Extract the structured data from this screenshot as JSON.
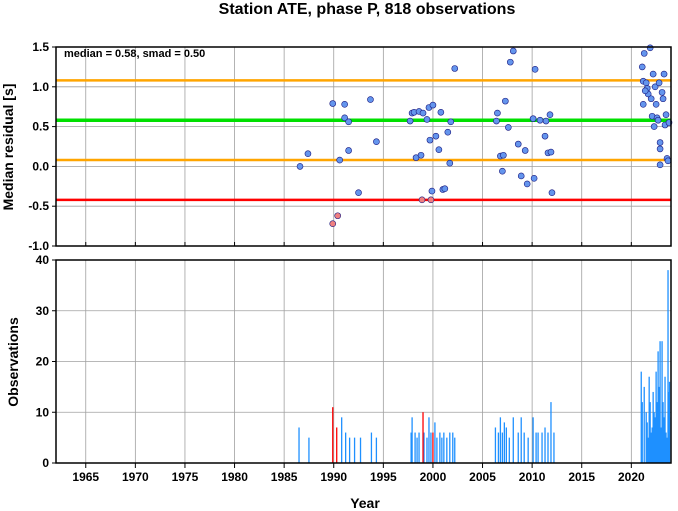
{
  "chart_data": [
    {
      "type": "scatter",
      "title": "Station ATE, phase P, 818 observations",
      "stats_text": "median = 0.58, smad = 0.50",
      "xlabel": "",
      "ylabel": "Median residual [s]",
      "xlim": [
        1962,
        2024
      ],
      "ylim": [
        -1.0,
        1.5
      ],
      "x_ticks": [
        1965,
        1970,
        1975,
        1980,
        1985,
        1990,
        1995,
        2000,
        2005,
        2010,
        2015,
        2020
      ],
      "y_ticks": [
        -1.0,
        -0.5,
        0.0,
        0.5,
        1.0,
        1.5
      ],
      "y_tick_labels": [
        "-1.0",
        "-0.5",
        "0.0",
        "0.5",
        "1.0",
        "1.5"
      ],
      "grid": true,
      "reference_lines": [
        {
          "value": 1.08,
          "color": "#ffa500"
        },
        {
          "value": 0.58,
          "color": "#00e000"
        },
        {
          "value": 0.08,
          "color": "#ffa500"
        },
        {
          "value": -0.42,
          "color": "#ff0000"
        }
      ],
      "series": [
        {
          "color": "#6495ed",
          "points": [
            [
              1986.6,
              0.0
            ],
            [
              1987.4,
              0.16
            ],
            [
              1989.9,
              0.79
            ],
            [
              1990.6,
              0.08
            ],
            [
              1991.1,
              0.78
            ],
            [
              1991.1,
              0.61
            ],
            [
              1991.5,
              0.56
            ],
            [
              1991.5,
              0.2
            ],
            [
              1992.5,
              -0.33
            ],
            [
              1993.7,
              0.84
            ],
            [
              1994.3,
              0.31
            ],
            [
              1997.7,
              0.57
            ],
            [
              1997.9,
              0.67
            ],
            [
              1998.1,
              0.68
            ],
            [
              1998.3,
              0.11
            ],
            [
              1998.6,
              0.69
            ],
            [
              1998.8,
              0.14
            ],
            [
              1999.0,
              0.67
            ],
            [
              1999.4,
              0.59
            ],
            [
              1999.6,
              0.74
            ],
            [
              1999.7,
              0.33
            ],
            [
              1999.9,
              -0.31
            ],
            [
              2000.0,
              0.77
            ],
            [
              2000.3,
              0.38
            ],
            [
              2000.6,
              0.21
            ],
            [
              2000.8,
              0.68
            ],
            [
              2001.0,
              -0.29
            ],
            [
              2001.2,
              -0.28
            ],
            [
              2001.5,
              0.43
            ],
            [
              2001.7,
              0.04
            ],
            [
              2001.8,
              0.56
            ],
            [
              2002.2,
              1.23
            ],
            [
              2006.4,
              0.57
            ],
            [
              2006.5,
              0.67
            ],
            [
              2006.8,
              0.13
            ],
            [
              2007.0,
              -0.06
            ],
            [
              2007.1,
              0.14
            ],
            [
              2007.3,
              0.82
            ],
            [
              2007.6,
              0.49
            ],
            [
              2007.8,
              1.31
            ],
            [
              2008.1,
              1.45
            ],
            [
              2008.6,
              0.28
            ],
            [
              2008.9,
              -0.12
            ],
            [
              2009.3,
              0.2
            ],
            [
              2009.5,
              -0.22
            ],
            [
              2010.1,
              0.6
            ],
            [
              2010.2,
              -0.15
            ],
            [
              2010.3,
              1.22
            ],
            [
              2010.8,
              0.58
            ],
            [
              2011.3,
              0.38
            ],
            [
              2011.4,
              0.57
            ],
            [
              2011.6,
              0.17
            ],
            [
              2011.8,
              0.65
            ],
            [
              2012.0,
              -0.33
            ],
            [
              2011.9,
              0.18
            ],
            [
              2021.1,
              1.25
            ],
            [
              2021.2,
              1.07
            ],
            [
              2021.3,
              1.42
            ],
            [
              2021.5,
              1.05
            ],
            [
              2021.6,
              0.98
            ],
            [
              2021.7,
              0.91
            ],
            [
              2021.9,
              1.49
            ],
            [
              2022.0,
              0.85
            ],
            [
              2022.1,
              0.63
            ],
            [
              2022.2,
              1.16
            ],
            [
              2022.3,
              0.5
            ],
            [
              2022.4,
              1.0
            ],
            [
              2022.5,
              0.78
            ],
            [
              2022.6,
              0.61
            ],
            [
              2022.7,
              0.58
            ],
            [
              2022.8,
              1.05
            ],
            [
              2022.9,
              0.3
            ],
            [
              2022.9,
              0.22
            ],
            [
              2023.1,
              0.93
            ],
            [
              2023.2,
              0.85
            ],
            [
              2023.3,
              1.16
            ],
            [
              2023.4,
              0.52
            ],
            [
              2023.5,
              0.65
            ],
            [
              2023.6,
              0.1
            ],
            [
              2023.7,
              0.07
            ],
            [
              2023.9,
              0.55
            ],
            [
              2022.9,
              0.02
            ],
            [
              2021.2,
              0.78
            ],
            [
              2021.4,
              0.95
            ]
          ]
        },
        {
          "color": "#f08080",
          "points": [
            [
              1989.9,
              -0.72
            ],
            [
              1990.4,
              -0.62
            ],
            [
              1998.9,
              -0.42
            ],
            [
              1999.8,
              -0.42
            ]
          ]
        }
      ]
    },
    {
      "type": "bar",
      "xlabel": "Year",
      "ylabel": "Observations",
      "xlim": [
        1962,
        2024
      ],
      "ylim": [
        0,
        40
      ],
      "x_ticks": [
        1965,
        1970,
        1975,
        1980,
        1985,
        1990,
        1995,
        2000,
        2005,
        2010,
        2015,
        2020
      ],
      "y_ticks": [
        0,
        10,
        20,
        30,
        40
      ],
      "grid": true,
      "series": [
        {
          "color": "#1e90ff",
          "bars": [
            [
              1986.5,
              7
            ],
            [
              1987.5,
              5
            ],
            [
              1990.8,
              9
            ],
            [
              1991.2,
              6
            ],
            [
              1991.6,
              5
            ],
            [
              1992.1,
              5
            ],
            [
              1992.7,
              5
            ],
            [
              1993.8,
              6
            ],
            [
              1994.3,
              5
            ],
            [
              1997.8,
              6
            ],
            [
              1997.9,
              9
            ],
            [
              1998.2,
              6
            ],
            [
              1998.4,
              5
            ],
            [
              1998.6,
              6
            ],
            [
              1999.1,
              6
            ],
            [
              1999.4,
              5
            ],
            [
              1999.6,
              9
            ],
            [
              1999.8,
              6
            ],
            [
              2000.2,
              8
            ],
            [
              2000.4,
              5
            ],
            [
              2000.7,
              6
            ],
            [
              2000.9,
              5
            ],
            [
              2001.1,
              6
            ],
            [
              2001.4,
              5
            ],
            [
              2001.7,
              6
            ],
            [
              2002.0,
              6
            ],
            [
              2002.2,
              5
            ],
            [
              2006.3,
              7
            ],
            [
              2006.6,
              6
            ],
            [
              2006.8,
              9
            ],
            [
              2007.0,
              6
            ],
            [
              2007.2,
              8
            ],
            [
              2007.4,
              7
            ],
            [
              2007.7,
              5
            ],
            [
              2008.1,
              9
            ],
            [
              2008.6,
              6
            ],
            [
              2008.9,
              9
            ],
            [
              2009.2,
              6
            ],
            [
              2009.6,
              5
            ],
            [
              2010.1,
              9
            ],
            [
              2010.4,
              6
            ],
            [
              2010.6,
              6
            ],
            [
              2011.0,
              6
            ],
            [
              2011.3,
              7
            ],
            [
              2011.6,
              6
            ],
            [
              2011.9,
              12
            ],
            [
              2012.2,
              6
            ],
            [
              2021.0,
              18
            ],
            [
              2021.1,
              12
            ],
            [
              2021.3,
              15
            ],
            [
              2021.5,
              10
            ],
            [
              2021.6,
              8
            ],
            [
              2021.7,
              5
            ],
            [
              2021.8,
              17
            ],
            [
              2021.9,
              12
            ],
            [
              2022.0,
              6
            ],
            [
              2022.1,
              7
            ],
            [
              2022.2,
              14
            ],
            [
              2022.3,
              10
            ],
            [
              2022.4,
              9
            ],
            [
              2022.5,
              18
            ],
            [
              2022.6,
              12
            ],
            [
              2022.7,
              22
            ],
            [
              2022.8,
              15
            ],
            [
              2022.9,
              24
            ],
            [
              2023.0,
              7
            ],
            [
              2023.1,
              24
            ],
            [
              2023.2,
              12
            ],
            [
              2023.3,
              9
            ],
            [
              2023.4,
              17
            ],
            [
              2023.5,
              6
            ],
            [
              2023.6,
              5
            ],
            [
              2023.7,
              38
            ],
            [
              2023.8,
              14
            ],
            [
              2023.9,
              16
            ],
            [
              2024.0,
              9
            ]
          ]
        },
        {
          "color": "#ff0000",
          "bars": [
            [
              1989.9,
              11
            ],
            [
              1990.3,
              7
            ],
            [
              1999.0,
              10
            ],
            [
              2000.0,
              6
            ]
          ]
        }
      ]
    }
  ]
}
